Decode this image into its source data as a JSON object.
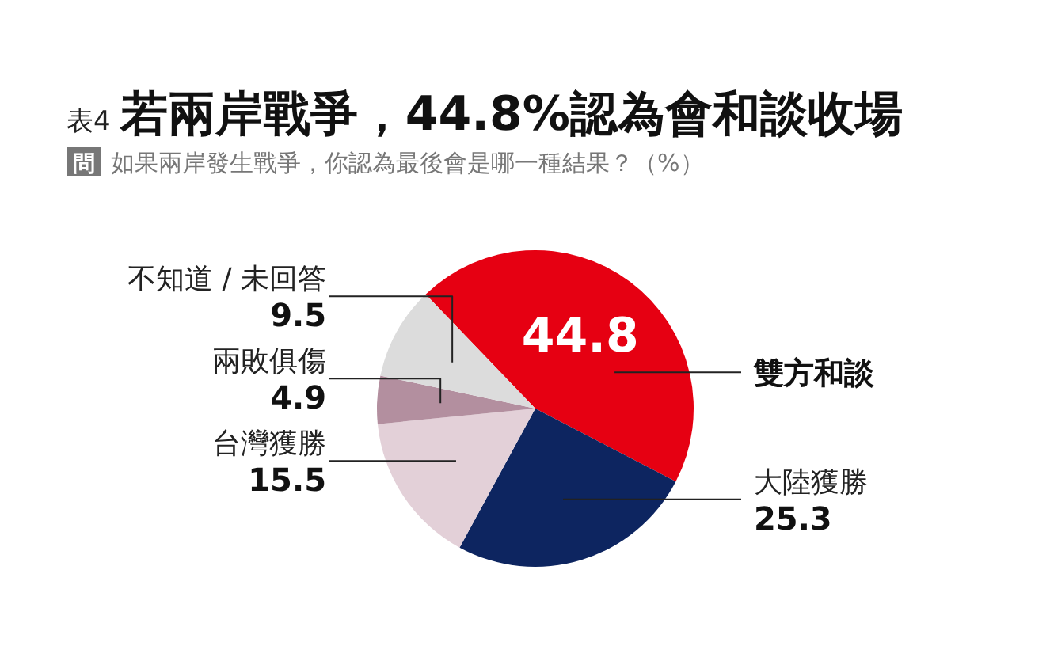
{
  "chart_data": {
    "type": "pie",
    "title": "若兩岸戰爭，44.8%認為會和談收場",
    "subtitle": "如果兩岸發生戰爭，你認為最後會是哪一種結果？（%）",
    "annotations": [
      "表4",
      "問"
    ],
    "categories": [
      "雙方和談",
      "大陸獲勝",
      "台灣獲勝",
      "兩敗俱傷",
      "不知道 / 未回答"
    ],
    "values": [
      44.8,
      25.3,
      15.5,
      4.9,
      9.5
    ],
    "colors": [
      "#e60012",
      "#0d2560",
      "#e3d0d8",
      "#b38f9f",
      "#dcdcdc"
    ],
    "data_labels": true
  }
}
